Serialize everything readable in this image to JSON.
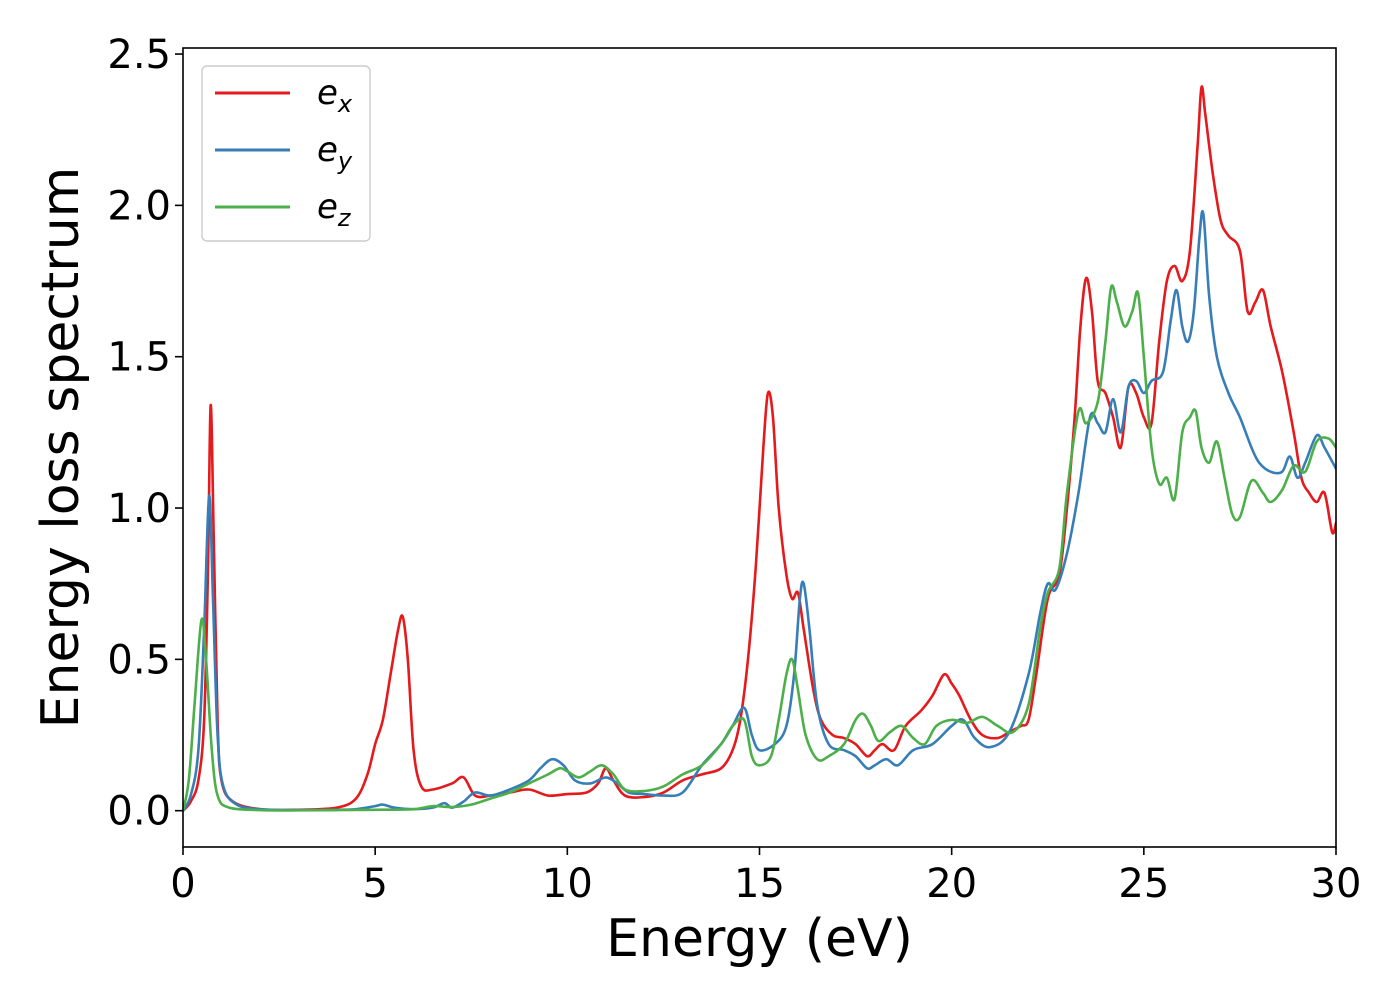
{
  "chart_data": {
    "type": "line",
    "title": "",
    "xlabel": "Energy (eV)",
    "ylabel": "Energy loss spectrum",
    "xlim": [
      0,
      30
    ],
    "ylim": [
      -0.12,
      2.52
    ],
    "xticks": [
      0,
      5,
      10,
      15,
      20,
      25,
      30
    ],
    "xtick_labels": [
      "0",
      "5",
      "10",
      "15",
      "20",
      "25",
      "30"
    ],
    "yticks": [
      0.0,
      0.5,
      1.0,
      1.5,
      2.0,
      2.5
    ],
    "ytick_labels": [
      "0.0",
      "0.5",
      "1.0",
      "1.5",
      "2.0",
      "2.5"
    ],
    "grid": false,
    "legend_position": "top-left",
    "series": [
      {
        "name": "e_x",
        "label_base": "e",
        "label_sub": "x",
        "color": "#e41a1c",
        "points": [
          [
            0,
            0.0
          ],
          [
            0.2,
            0.03
          ],
          [
            0.4,
            0.1
          ],
          [
            0.55,
            0.3
          ],
          [
            0.65,
            0.8
          ],
          [
            0.72,
            1.34
          ],
          [
            0.8,
            0.9
          ],
          [
            0.9,
            0.3
          ],
          [
            1.0,
            0.1
          ],
          [
            1.3,
            0.03
          ],
          [
            2,
            0.005
          ],
          [
            3,
            0.003
          ],
          [
            4,
            0.01
          ],
          [
            4.5,
            0.04
          ],
          [
            4.8,
            0.12
          ],
          [
            5.0,
            0.22
          ],
          [
            5.2,
            0.3
          ],
          [
            5.4,
            0.45
          ],
          [
            5.6,
            0.6
          ],
          [
            5.72,
            0.64
          ],
          [
            5.85,
            0.5
          ],
          [
            6.0,
            0.2
          ],
          [
            6.2,
            0.08
          ],
          [
            6.5,
            0.07
          ],
          [
            7.0,
            0.09
          ],
          [
            7.3,
            0.11
          ],
          [
            7.6,
            0.05
          ],
          [
            8.0,
            0.05
          ],
          [
            8.5,
            0.06
          ],
          [
            9.0,
            0.07
          ],
          [
            9.5,
            0.05
          ],
          [
            10.0,
            0.055
          ],
          [
            10.5,
            0.06
          ],
          [
            10.8,
            0.09
          ],
          [
            11.0,
            0.14
          ],
          [
            11.2,
            0.1
          ],
          [
            11.5,
            0.05
          ],
          [
            12.0,
            0.045
          ],
          [
            12.5,
            0.06
          ],
          [
            13.0,
            0.1
          ],
          [
            13.5,
            0.12
          ],
          [
            14.0,
            0.14
          ],
          [
            14.3,
            0.2
          ],
          [
            14.5,
            0.3
          ],
          [
            14.7,
            0.5
          ],
          [
            14.9,
            0.8
          ],
          [
            15.1,
            1.2
          ],
          [
            15.22,
            1.38
          ],
          [
            15.35,
            1.3
          ],
          [
            15.5,
            1.0
          ],
          [
            15.7,
            0.78
          ],
          [
            15.85,
            0.7
          ],
          [
            16.0,
            0.72
          ],
          [
            16.15,
            0.6
          ],
          [
            16.4,
            0.4
          ],
          [
            16.6,
            0.3
          ],
          [
            16.9,
            0.25
          ],
          [
            17.2,
            0.24
          ],
          [
            17.5,
            0.22
          ],
          [
            17.8,
            0.18
          ],
          [
            18.0,
            0.2
          ],
          [
            18.2,
            0.22
          ],
          [
            18.5,
            0.2
          ],
          [
            18.8,
            0.28
          ],
          [
            19.2,
            0.33
          ],
          [
            19.5,
            0.38
          ],
          [
            19.8,
            0.45
          ],
          [
            20.0,
            0.42
          ],
          [
            20.2,
            0.38
          ],
          [
            20.5,
            0.3
          ],
          [
            20.8,
            0.25
          ],
          [
            21.2,
            0.24
          ],
          [
            21.5,
            0.26
          ],
          [
            21.8,
            0.28
          ],
          [
            22.0,
            0.3
          ],
          [
            22.2,
            0.45
          ],
          [
            22.5,
            0.7
          ],
          [
            22.8,
            0.78
          ],
          [
            23.0,
            1.0
          ],
          [
            23.2,
            1.3
          ],
          [
            23.35,
            1.6
          ],
          [
            23.5,
            1.76
          ],
          [
            23.65,
            1.65
          ],
          [
            23.8,
            1.42
          ],
          [
            24.0,
            1.38
          ],
          [
            24.2,
            1.3
          ],
          [
            24.4,
            1.2
          ],
          [
            24.6,
            1.4
          ],
          [
            24.8,
            1.38
          ],
          [
            25.0,
            1.3
          ],
          [
            25.2,
            1.28
          ],
          [
            25.4,
            1.55
          ],
          [
            25.6,
            1.75
          ],
          [
            25.8,
            1.8
          ],
          [
            26.0,
            1.75
          ],
          [
            26.2,
            1.85
          ],
          [
            26.4,
            2.2
          ],
          [
            26.5,
            2.39
          ],
          [
            26.6,
            2.3
          ],
          [
            26.8,
            2.1
          ],
          [
            27.0,
            1.95
          ],
          [
            27.2,
            1.9
          ],
          [
            27.5,
            1.85
          ],
          [
            27.7,
            1.65
          ],
          [
            27.9,
            1.68
          ],
          [
            28.1,
            1.72
          ],
          [
            28.3,
            1.6
          ],
          [
            28.6,
            1.45
          ],
          [
            28.9,
            1.25
          ],
          [
            29.1,
            1.1
          ],
          [
            29.3,
            1.05
          ],
          [
            29.5,
            1.02
          ],
          [
            29.7,
            1.05
          ],
          [
            29.9,
            0.92
          ],
          [
            30.0,
            0.95
          ]
        ]
      },
      {
        "name": "e_y",
        "label_base": "e",
        "label_sub": "y",
        "color": "#377eb8",
        "points": [
          [
            0,
            0.0
          ],
          [
            0.2,
            0.05
          ],
          [
            0.4,
            0.2
          ],
          [
            0.55,
            0.6
          ],
          [
            0.68,
            1.04
          ],
          [
            0.78,
            0.7
          ],
          [
            0.9,
            0.25
          ],
          [
            1.05,
            0.08
          ],
          [
            1.4,
            0.02
          ],
          [
            2,
            0.005
          ],
          [
            3,
            0.002
          ],
          [
            4,
            0.003
          ],
          [
            4.5,
            0.005
          ],
          [
            5.0,
            0.015
          ],
          [
            5.2,
            0.02
          ],
          [
            5.5,
            0.01
          ],
          [
            6.0,
            0.005
          ],
          [
            6.5,
            0.01
          ],
          [
            6.8,
            0.025
          ],
          [
            7.0,
            0.01
          ],
          [
            7.3,
            0.03
          ],
          [
            7.6,
            0.06
          ],
          [
            8.0,
            0.05
          ],
          [
            8.5,
            0.07
          ],
          [
            9.0,
            0.1
          ],
          [
            9.3,
            0.14
          ],
          [
            9.6,
            0.17
          ],
          [
            9.9,
            0.15
          ],
          [
            10.2,
            0.1
          ],
          [
            10.6,
            0.09
          ],
          [
            11.0,
            0.11
          ],
          [
            11.3,
            0.09
          ],
          [
            11.6,
            0.06
          ],
          [
            12.0,
            0.055
          ],
          [
            12.5,
            0.05
          ],
          [
            13.0,
            0.06
          ],
          [
            13.5,
            0.15
          ],
          [
            14.0,
            0.22
          ],
          [
            14.3,
            0.28
          ],
          [
            14.6,
            0.34
          ],
          [
            14.8,
            0.25
          ],
          [
            15.0,
            0.2
          ],
          [
            15.4,
            0.22
          ],
          [
            15.7,
            0.28
          ],
          [
            15.9,
            0.45
          ],
          [
            16.05,
            0.7
          ],
          [
            16.15,
            0.75
          ],
          [
            16.3,
            0.6
          ],
          [
            16.5,
            0.35
          ],
          [
            16.8,
            0.22
          ],
          [
            17.2,
            0.2
          ],
          [
            17.5,
            0.18
          ],
          [
            17.8,
            0.14
          ],
          [
            18.0,
            0.15
          ],
          [
            18.3,
            0.17
          ],
          [
            18.6,
            0.15
          ],
          [
            19.0,
            0.2
          ],
          [
            19.5,
            0.22
          ],
          [
            20.0,
            0.28
          ],
          [
            20.3,
            0.3
          ],
          [
            20.6,
            0.24
          ],
          [
            21.0,
            0.21
          ],
          [
            21.5,
            0.26
          ],
          [
            22.0,
            0.45
          ],
          [
            22.3,
            0.65
          ],
          [
            22.5,
            0.75
          ],
          [
            22.7,
            0.73
          ],
          [
            23.0,
            0.85
          ],
          [
            23.3,
            1.05
          ],
          [
            23.6,
            1.3
          ],
          [
            23.8,
            1.28
          ],
          [
            24.0,
            1.25
          ],
          [
            24.2,
            1.36
          ],
          [
            24.4,
            1.25
          ],
          [
            24.6,
            1.4
          ],
          [
            24.8,
            1.42
          ],
          [
            25.0,
            1.38
          ],
          [
            25.2,
            1.42
          ],
          [
            25.5,
            1.45
          ],
          [
            25.7,
            1.62
          ],
          [
            25.85,
            1.72
          ],
          [
            26.0,
            1.6
          ],
          [
            26.15,
            1.55
          ],
          [
            26.3,
            1.65
          ],
          [
            26.45,
            1.9
          ],
          [
            26.55,
            1.97
          ],
          [
            26.7,
            1.7
          ],
          [
            26.9,
            1.5
          ],
          [
            27.2,
            1.38
          ],
          [
            27.5,
            1.3
          ],
          [
            27.8,
            1.2
          ],
          [
            28.0,
            1.15
          ],
          [
            28.3,
            1.12
          ],
          [
            28.6,
            1.12
          ],
          [
            28.8,
            1.17
          ],
          [
            29.0,
            1.1
          ],
          [
            29.2,
            1.15
          ],
          [
            29.5,
            1.24
          ],
          [
            29.7,
            1.2
          ],
          [
            30.0,
            1.13
          ]
        ]
      },
      {
        "name": "e_z",
        "label_base": "e",
        "label_sub": "z",
        "color": "#4daf4a",
        "points": [
          [
            0,
            0.0
          ],
          [
            0.15,
            0.1
          ],
          [
            0.3,
            0.35
          ],
          [
            0.48,
            0.63
          ],
          [
            0.6,
            0.5
          ],
          [
            0.75,
            0.2
          ],
          [
            0.9,
            0.05
          ],
          [
            1.2,
            0.01
          ],
          [
            2,
            0.002
          ],
          [
            3,
            0.001
          ],
          [
            4,
            0.002
          ],
          [
            5,
            0.003
          ],
          [
            6,
            0.005
          ],
          [
            6.5,
            0.015
          ],
          [
            7.0,
            0.012
          ],
          [
            7.5,
            0.02
          ],
          [
            8.0,
            0.04
          ],
          [
            8.5,
            0.06
          ],
          [
            9.0,
            0.09
          ],
          [
            9.5,
            0.12
          ],
          [
            9.8,
            0.14
          ],
          [
            10.0,
            0.13
          ],
          [
            10.3,
            0.11
          ],
          [
            10.6,
            0.13
          ],
          [
            10.9,
            0.15
          ],
          [
            11.2,
            0.12
          ],
          [
            11.5,
            0.07
          ],
          [
            12.0,
            0.065
          ],
          [
            12.5,
            0.08
          ],
          [
            13.0,
            0.12
          ],
          [
            13.5,
            0.15
          ],
          [
            14.0,
            0.22
          ],
          [
            14.3,
            0.28
          ],
          [
            14.6,
            0.3
          ],
          [
            14.8,
            0.18
          ],
          [
            15.0,
            0.15
          ],
          [
            15.3,
            0.18
          ],
          [
            15.5,
            0.3
          ],
          [
            15.7,
            0.45
          ],
          [
            15.85,
            0.5
          ],
          [
            16.0,
            0.4
          ],
          [
            16.2,
            0.25
          ],
          [
            16.5,
            0.17
          ],
          [
            16.8,
            0.18
          ],
          [
            17.2,
            0.22
          ],
          [
            17.5,
            0.3
          ],
          [
            17.7,
            0.32
          ],
          [
            17.9,
            0.28
          ],
          [
            18.1,
            0.23
          ],
          [
            18.4,
            0.26
          ],
          [
            18.7,
            0.28
          ],
          [
            19.0,
            0.24
          ],
          [
            19.3,
            0.22
          ],
          [
            19.6,
            0.28
          ],
          [
            20.0,
            0.3
          ],
          [
            20.4,
            0.29
          ],
          [
            20.8,
            0.31
          ],
          [
            21.2,
            0.28
          ],
          [
            21.6,
            0.26
          ],
          [
            22.0,
            0.35
          ],
          [
            22.3,
            0.6
          ],
          [
            22.5,
            0.72
          ],
          [
            22.8,
            0.8
          ],
          [
            23.0,
            1.05
          ],
          [
            23.3,
            1.32
          ],
          [
            23.5,
            1.28
          ],
          [
            23.8,
            1.35
          ],
          [
            24.0,
            1.55
          ],
          [
            24.15,
            1.73
          ],
          [
            24.3,
            1.68
          ],
          [
            24.5,
            1.6
          ],
          [
            24.7,
            1.65
          ],
          [
            24.85,
            1.71
          ],
          [
            25.0,
            1.5
          ],
          [
            25.2,
            1.2
          ],
          [
            25.4,
            1.08
          ],
          [
            25.6,
            1.1
          ],
          [
            25.8,
            1.03
          ],
          [
            26.0,
            1.25
          ],
          [
            26.2,
            1.3
          ],
          [
            26.35,
            1.32
          ],
          [
            26.5,
            1.2
          ],
          [
            26.7,
            1.15
          ],
          [
            26.9,
            1.22
          ],
          [
            27.1,
            1.1
          ],
          [
            27.3,
            0.98
          ],
          [
            27.5,
            0.97
          ],
          [
            27.8,
            1.09
          ],
          [
            28.1,
            1.05
          ],
          [
            28.3,
            1.02
          ],
          [
            28.6,
            1.06
          ],
          [
            28.9,
            1.14
          ],
          [
            29.2,
            1.12
          ],
          [
            29.5,
            1.22
          ],
          [
            29.8,
            1.23
          ],
          [
            30.0,
            1.2
          ]
        ]
      }
    ]
  }
}
